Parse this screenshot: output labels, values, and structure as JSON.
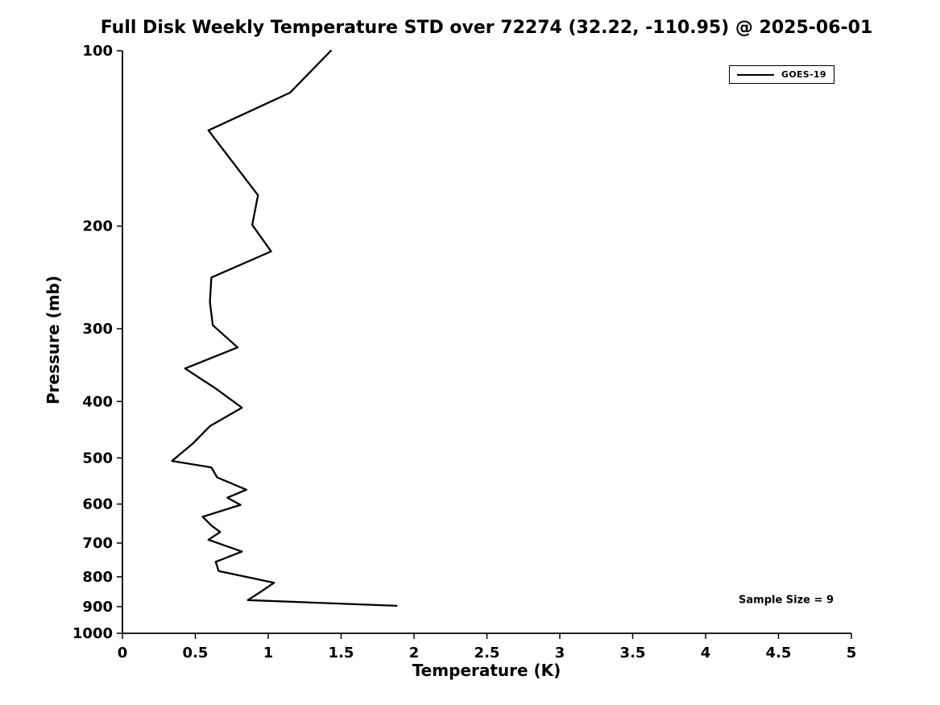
{
  "chart_data": {
    "type": "line",
    "title": "Full Disk Weekly Temperature STD over 72274 (32.22, -110.95) @ 2025-06-01",
    "xlabel": "Temperature (K)",
    "ylabel": "Pressure (mb)",
    "xlim": [
      0,
      5
    ],
    "ylim": [
      1000,
      100
    ],
    "yscale": "log",
    "grid": false,
    "xticks": [
      0,
      0.5,
      1,
      1.5,
      2,
      2.5,
      3,
      3.5,
      4,
      4.5,
      5
    ],
    "xtick_labels": [
      "0",
      "0.5",
      "1",
      "1.5",
      "2",
      "2.5",
      "3",
      "3.5",
      "4",
      "4.5",
      "5"
    ],
    "yticks": [
      100,
      200,
      300,
      400,
      500,
      600,
      700,
      800,
      900,
      1000
    ],
    "ytick_labels": [
      "100",
      "200",
      "300",
      "400",
      "500",
      "600",
      "700",
      "800",
      "900",
      "1000"
    ],
    "legend": {
      "position": "top-right",
      "entries": [
        {
          "label": "GOES-19",
          "color": "#000000",
          "line_width": 2
        }
      ]
    },
    "annotation": "Sample Size = 9",
    "series": [
      {
        "name": "GOES-19",
        "color": "#000000",
        "x_temperature_K": [
          1.43,
          1.15,
          0.59,
          0.93,
          0.89,
          1.02,
          0.61,
          0.6,
          0.62,
          0.79,
          0.43,
          0.64,
          0.82,
          0.6,
          0.48,
          0.34,
          0.61,
          0.65,
          0.85,
          0.72,
          0.81,
          0.55,
          0.61,
          0.67,
          0.59,
          0.82,
          0.64,
          0.66,
          1.04,
          0.96,
          0.86,
          1.88
        ],
        "y_pressure_mb": [
          100,
          118,
          137,
          177,
          199,
          221,
          245,
          270,
          296,
          323,
          351,
          380,
          410,
          441,
          473,
          506,
          519,
          540,
          567,
          585,
          602,
          631,
          653,
          670,
          691,
          724,
          754,
          782,
          819,
          845,
          877,
          897
        ]
      }
    ]
  },
  "colors": {
    "background": "#ffffff",
    "axis": "#000000",
    "text": "#000000",
    "line": "#000000"
  }
}
